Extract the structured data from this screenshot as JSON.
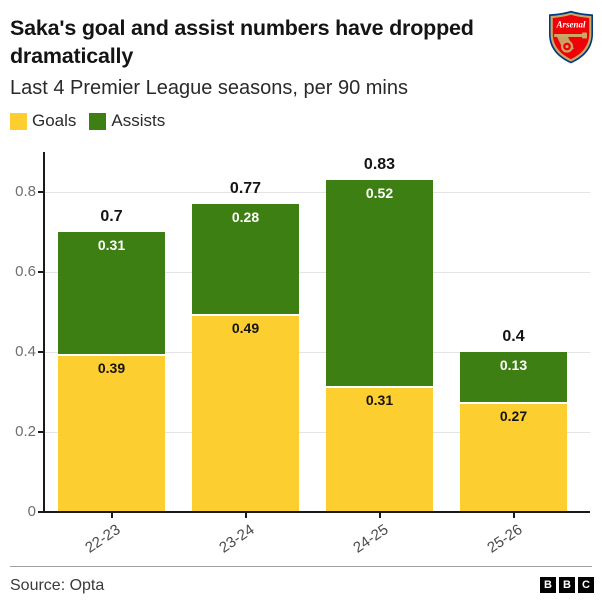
{
  "header": {
    "title": "Saka's goal and assist numbers have dropped dramatically",
    "subtitle": "Last 4 Premier League seasons, per 90 mins",
    "badge_text": "Arsenal"
  },
  "legend": [
    {
      "label": "Goals",
      "color": "#FDCE2F"
    },
    {
      "label": "Assists",
      "color": "#3D7F13"
    }
  ],
  "chart_data": {
    "type": "bar",
    "stacked": true,
    "title": "Saka's goal and assist numbers have dropped dramatically",
    "subtitle": "Last 4 Premier League seasons, per 90 mins",
    "categories": [
      "22-23",
      "23-24",
      "24-25",
      "25-26"
    ],
    "series": [
      {
        "name": "Goals",
        "color": "#FDCE2F",
        "values": [
          0.39,
          0.49,
          0.31,
          0.27
        ]
      },
      {
        "name": "Assists",
        "color": "#3D7F13",
        "values": [
          0.31,
          0.28,
          0.52,
          0.13
        ]
      }
    ],
    "totals": [
      0.7,
      0.77,
      0.83,
      0.4
    ],
    "y_ticks": [
      0,
      0.2,
      0.4,
      0.6,
      0.8
    ],
    "y_tick_labels": [
      "0",
      "0.2",
      "0.4",
      "0.6",
      "0.8"
    ],
    "ylim": [
      0,
      0.9
    ],
    "xlabel": "",
    "ylabel": "",
    "grid": "horizontal",
    "legend_position": "top-left"
  },
  "footer": {
    "source": "Source: Opta",
    "logo_letters": [
      "B",
      "B",
      "C"
    ]
  }
}
